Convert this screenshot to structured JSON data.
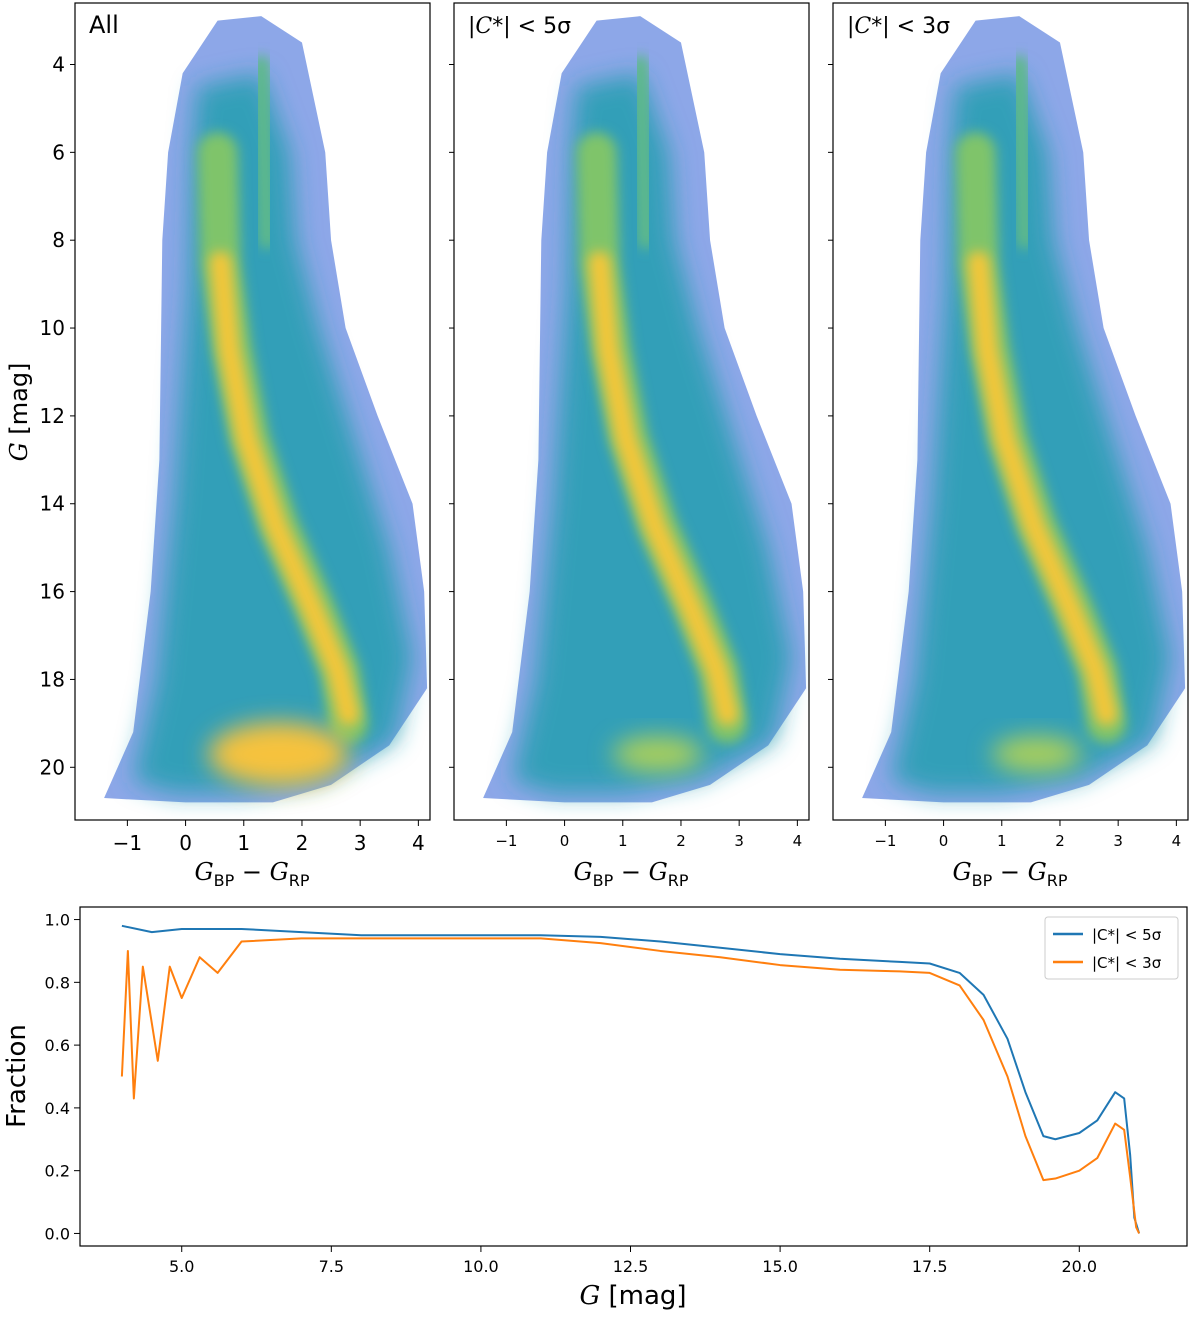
{
  "chart_data": [
    {
      "type": "heatmap",
      "panel_label": "All",
      "xlabel_main": "G",
      "xlabel_sub1": "BP",
      "xlabel_sep": " − ",
      "xlabel_main2": "G",
      "xlabel_sub2": "RP",
      "ylabel_var": "G",
      "ylabel_unit": " [mag]",
      "xlim": [
        -1.9,
        4.2
      ],
      "ylim": [
        21.2,
        2.6
      ],
      "xticks": [
        -1,
        0,
        1,
        2,
        3,
        4
      ],
      "xtick_labels": [
        "−1",
        "0",
        "1",
        "2",
        "3",
        "4"
      ],
      "yticks": [
        4,
        6,
        8,
        10,
        12,
        14,
        16,
        18,
        20
      ],
      "ytick_labels": [
        "4",
        "6",
        "8",
        "10",
        "12",
        "14",
        "16",
        "18",
        "20"
      ]
    },
    {
      "type": "heatmap",
      "panel_label_pre": "|",
      "panel_label_var": "C",
      "panel_label_post": "*| < 5σ",
      "xlabel_main": "G",
      "xlabel_sub1": "BP",
      "xlabel_sep": " − ",
      "xlabel_main2": "G",
      "xlabel_sub2": "RP",
      "xlim": [
        -1.9,
        4.2
      ],
      "ylim": [
        21.2,
        2.6
      ],
      "xticks": [
        -1,
        0,
        1,
        2,
        3,
        4
      ],
      "xtick_labels": [
        "−1",
        "0",
        "1",
        "2",
        "3",
        "4"
      ]
    },
    {
      "type": "heatmap",
      "panel_label_pre": "|",
      "panel_label_var": "C",
      "panel_label_post": "*| < 3σ",
      "xlabel_main": "G",
      "xlabel_sub1": "BP",
      "xlabel_sep": " − ",
      "xlabel_main2": "G",
      "xlabel_sub2": "RP",
      "xlim": [
        -1.9,
        4.2
      ],
      "ylim": [
        21.2,
        2.6
      ],
      "xticks": [
        -1,
        0,
        1,
        2,
        3,
        4
      ],
      "xtick_labels": [
        "−1",
        "0",
        "1",
        "2",
        "3",
        "4"
      ]
    },
    {
      "type": "line",
      "xlabel_var": "G",
      "xlabel_unit": " [mag]",
      "ylabel": "Fraction",
      "xlim": [
        3.3,
        21.8
      ],
      "ylim": [
        -0.04,
        1.04
      ],
      "xticks": [
        5.0,
        7.5,
        10.0,
        12.5,
        15.0,
        17.5,
        20.0
      ],
      "xtick_labels": [
        "5.0",
        "7.5",
        "10.0",
        "12.5",
        "15.0",
        "17.5",
        "20.0"
      ],
      "yticks": [
        0.0,
        0.2,
        0.4,
        0.6,
        0.8,
        1.0
      ],
      "ytick_labels": [
        "0.0",
        "0.2",
        "0.4",
        "0.6",
        "0.8",
        "1.0"
      ],
      "legend_position": "top-right",
      "series": [
        {
          "name": "|C*| < 5σ",
          "color": "#1f77b4",
          "points": [
            [
              4.0,
              0.98
            ],
            [
              4.5,
              0.96
            ],
            [
              5.0,
              0.97
            ],
            [
              5.5,
              0.97
            ],
            [
              6.0,
              0.97
            ],
            [
              7.0,
              0.96
            ],
            [
              8.0,
              0.95
            ],
            [
              9.0,
              0.95
            ],
            [
              10.0,
              0.95
            ],
            [
              11.0,
              0.95
            ],
            [
              12.0,
              0.945
            ],
            [
              13.0,
              0.93
            ],
            [
              14.0,
              0.91
            ],
            [
              15.0,
              0.89
            ],
            [
              16.0,
              0.875
            ],
            [
              17.0,
              0.865
            ],
            [
              17.5,
              0.86
            ],
            [
              18.0,
              0.83
            ],
            [
              18.4,
              0.76
            ],
            [
              18.8,
              0.62
            ],
            [
              19.1,
              0.45
            ],
            [
              19.4,
              0.31
            ],
            [
              19.6,
              0.3
            ],
            [
              20.0,
              0.32
            ],
            [
              20.3,
              0.36
            ],
            [
              20.6,
              0.45
            ],
            [
              20.75,
              0.43
            ],
            [
              20.85,
              0.25
            ],
            [
              20.92,
              0.05
            ],
            [
              21.0,
              0.0
            ]
          ]
        },
        {
          "name": "|C*| < 3σ",
          "color": "#ff7f0e",
          "points": [
            [
              4.0,
              0.5
            ],
            [
              4.1,
              0.9
            ],
            [
              4.2,
              0.43
            ],
            [
              4.35,
              0.85
            ],
            [
              4.6,
              0.55
            ],
            [
              4.8,
              0.85
            ],
            [
              5.0,
              0.75
            ],
            [
              5.3,
              0.88
            ],
            [
              5.6,
              0.83
            ],
            [
              6.0,
              0.93
            ],
            [
              7.0,
              0.94
            ],
            [
              8.0,
              0.94
            ],
            [
              9.0,
              0.94
            ],
            [
              10.0,
              0.94
            ],
            [
              11.0,
              0.94
            ],
            [
              12.0,
              0.925
            ],
            [
              13.0,
              0.9
            ],
            [
              14.0,
              0.88
            ],
            [
              15.0,
              0.855
            ],
            [
              16.0,
              0.84
            ],
            [
              17.0,
              0.835
            ],
            [
              17.5,
              0.83
            ],
            [
              18.0,
              0.79
            ],
            [
              18.4,
              0.68
            ],
            [
              18.8,
              0.5
            ],
            [
              19.1,
              0.31
            ],
            [
              19.4,
              0.17
            ],
            [
              19.6,
              0.175
            ],
            [
              20.0,
              0.2
            ],
            [
              20.3,
              0.24
            ],
            [
              20.6,
              0.35
            ],
            [
              20.75,
              0.33
            ],
            [
              20.85,
              0.18
            ],
            [
              20.95,
              0.02
            ],
            [
              21.0,
              0.0
            ]
          ]
        }
      ]
    }
  ]
}
